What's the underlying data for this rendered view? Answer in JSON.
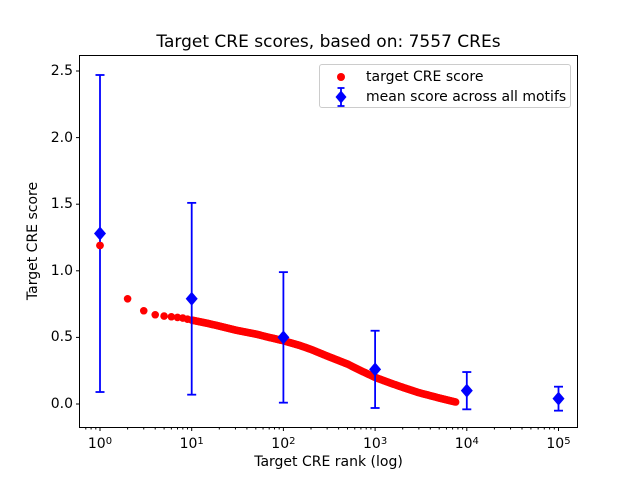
{
  "chart_data": {
    "type": "scatter",
    "title": "Target CRE scores, based on: 7557 CREs",
    "xlabel": "Target CRE rank (log)",
    "ylabel": "Target CRE score",
    "x_scale": "log",
    "xlim": [
      0.6,
      160000
    ],
    "ylim": [
      -0.17,
      2.61
    ],
    "grid": false,
    "x_tick_exponents": [
      0,
      1,
      2,
      3,
      4,
      5
    ],
    "x_ticklabels": [
      "10⁰",
      "10¹",
      "10²",
      "10³",
      "10⁴",
      "10⁵"
    ],
    "y_ticks": [
      0.0,
      0.5,
      1.0,
      1.5,
      2.0,
      2.5
    ],
    "y_ticklabels": [
      "0.0",
      "0.5",
      "1.0",
      "1.5",
      "2.0",
      "2.5"
    ],
    "legend": {
      "position": "upper right",
      "entries": [
        "target CRE score",
        "mean score across all motifs"
      ]
    },
    "series": [
      {
        "name": "target CRE score",
        "marker": "circle",
        "color": "#ff0000",
        "n_points": 7557,
        "anchors_rank_score": [
          [
            1,
            1.19
          ],
          [
            2,
            0.79
          ],
          [
            3,
            0.7
          ],
          [
            4,
            0.67
          ],
          [
            5,
            0.66
          ],
          [
            6,
            0.655
          ],
          [
            8,
            0.645
          ],
          [
            10,
            0.63
          ],
          [
            15,
            0.605
          ],
          [
            20,
            0.585
          ],
          [
            30,
            0.555
          ],
          [
            50,
            0.525
          ],
          [
            70,
            0.5
          ],
          [
            100,
            0.475
          ],
          [
            150,
            0.44
          ],
          [
            200,
            0.41
          ],
          [
            300,
            0.36
          ],
          [
            500,
            0.3
          ],
          [
            700,
            0.25
          ],
          [
            1000,
            0.2
          ],
          [
            1500,
            0.155
          ],
          [
            2000,
            0.125
          ],
          [
            3000,
            0.085
          ],
          [
            5000,
            0.045
          ],
          [
            7557,
            0.015
          ]
        ]
      },
      {
        "name": "mean score across all motifs",
        "marker": "diamond",
        "color": "#0000ff",
        "x": [
          1,
          10,
          100,
          1000,
          10000,
          100000
        ],
        "mean": [
          1.28,
          0.79,
          0.5,
          0.26,
          0.1,
          0.04
        ],
        "err": [
          1.19,
          0.72,
          0.49,
          0.29,
          0.14,
          0.09
        ]
      }
    ]
  },
  "colors": {
    "red_series": "#ff0000",
    "blue_series": "#0000ff",
    "axis": "#000000",
    "legend_border": "#cccccc",
    "background": "#ffffff"
  }
}
